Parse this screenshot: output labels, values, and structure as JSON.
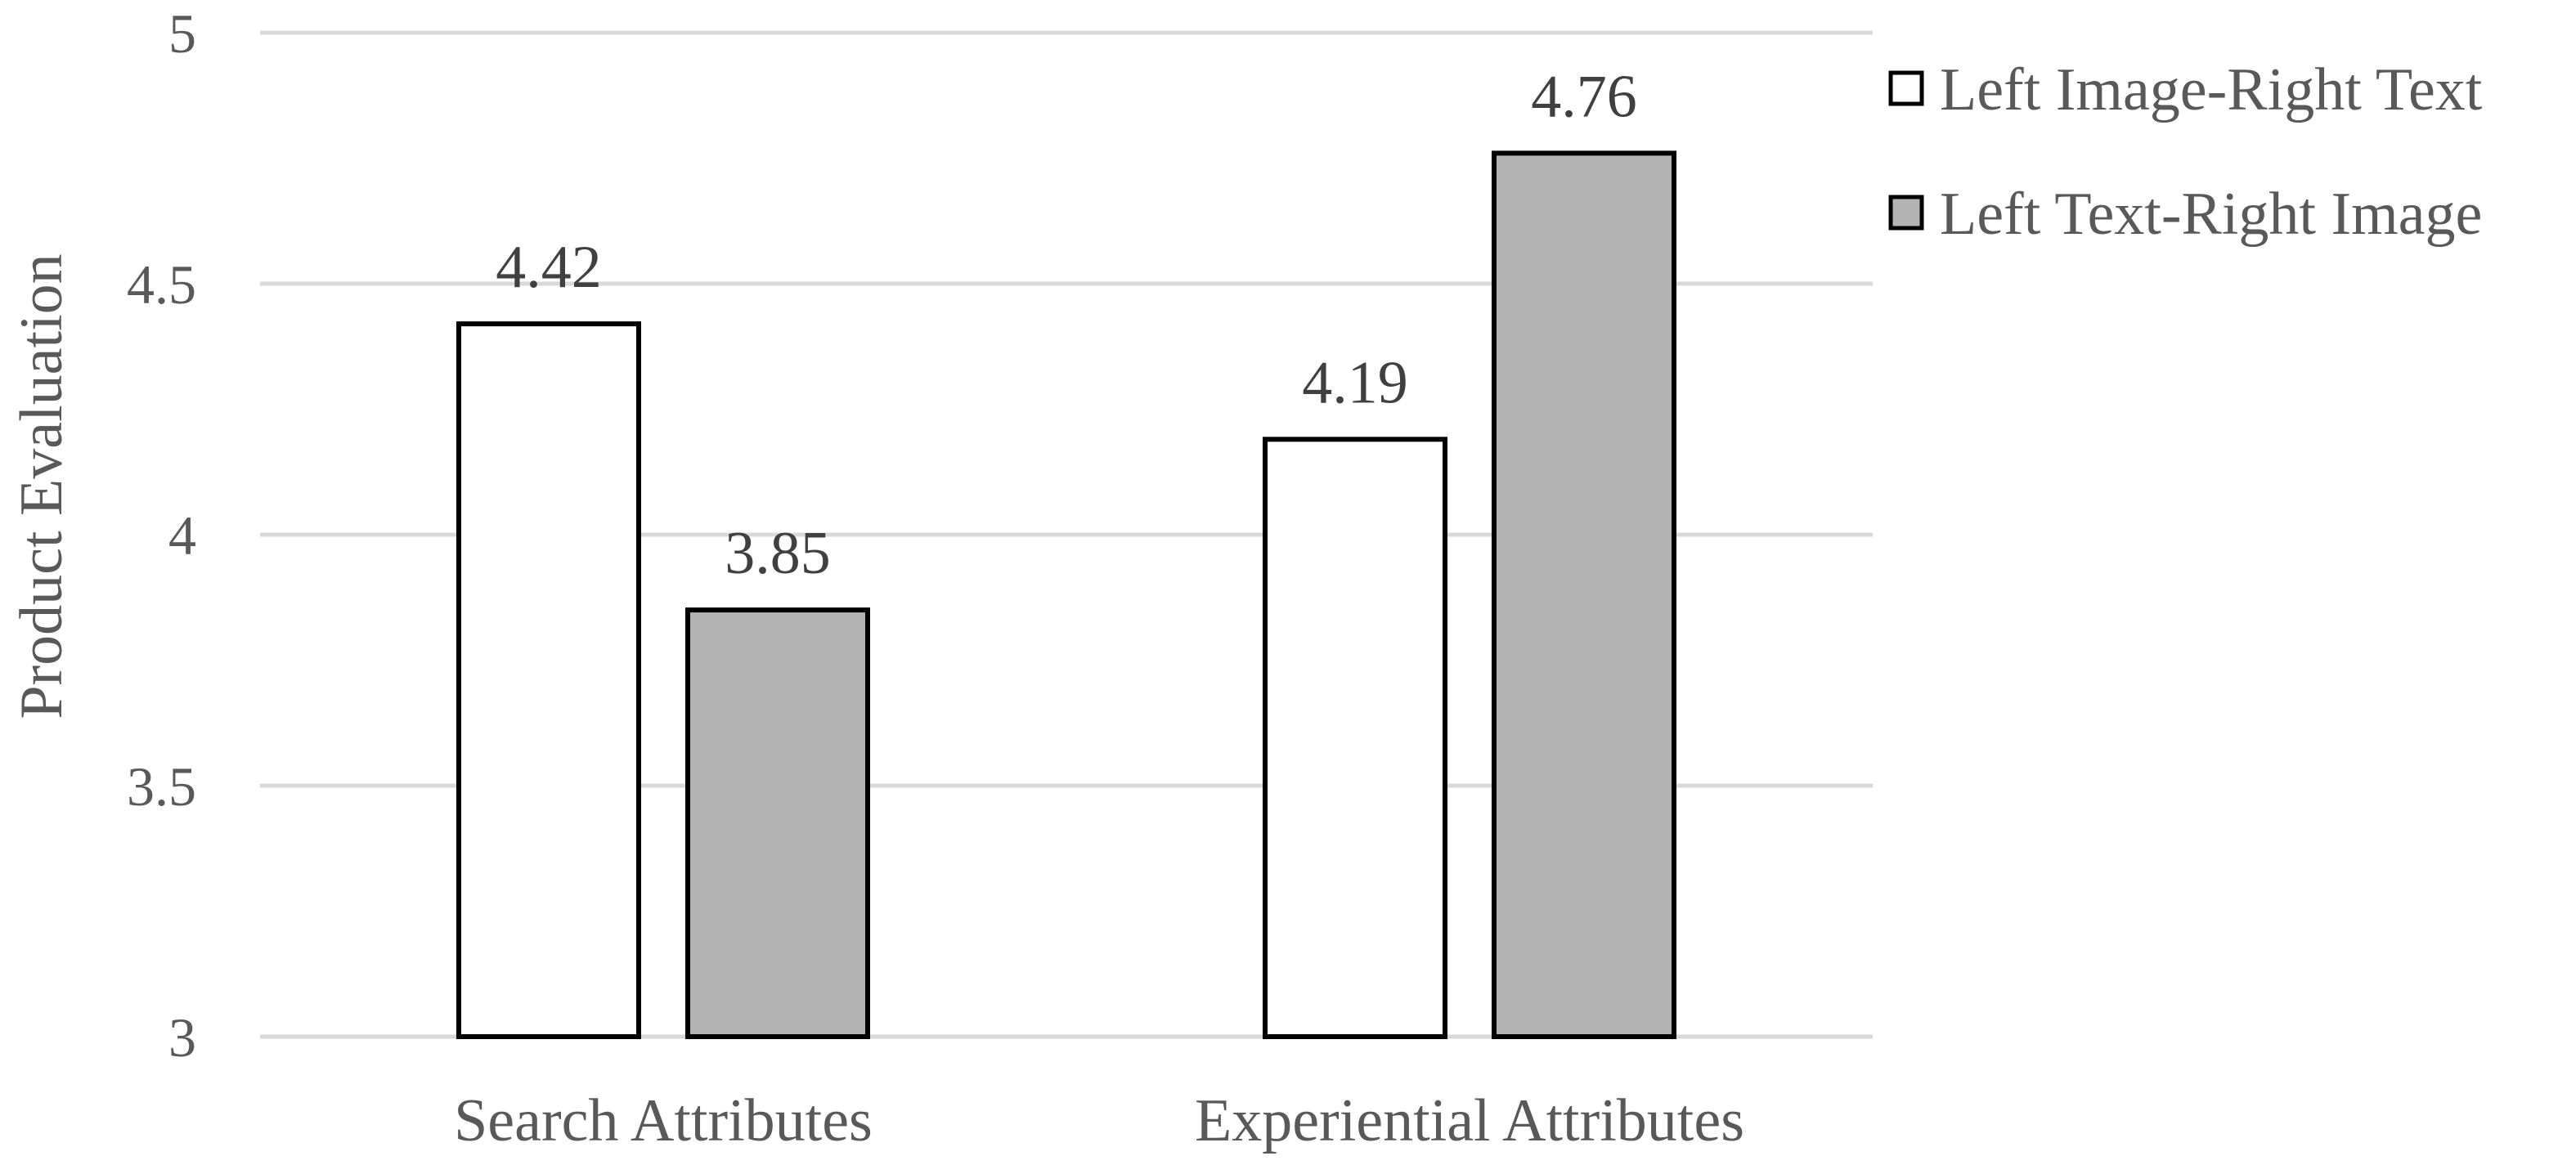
{
  "chart_data": {
    "type": "bar",
    "title": "",
    "xlabel": "",
    "ylabel": "Product Evaluation",
    "ylim": [
      3,
      5
    ],
    "yticks": [
      "3",
      "3.5",
      "4",
      "4.5",
      "5"
    ],
    "grid": true,
    "legend_position": "top-right",
    "categories": [
      "Search Attributes",
      "Experiential Attributes"
    ],
    "series": [
      {
        "name": "Left Image-Right Text",
        "values": [
          4.42,
          4.19
        ],
        "labels": [
          "4.42",
          "4.19"
        ],
        "color": "#ffffff"
      },
      {
        "name": "Left Text-Right Image",
        "values": [
          3.85,
          4.76
        ],
        "labels": [
          "3.85",
          "4.76"
        ],
        "color": "#b3b3b3"
      }
    ]
  }
}
